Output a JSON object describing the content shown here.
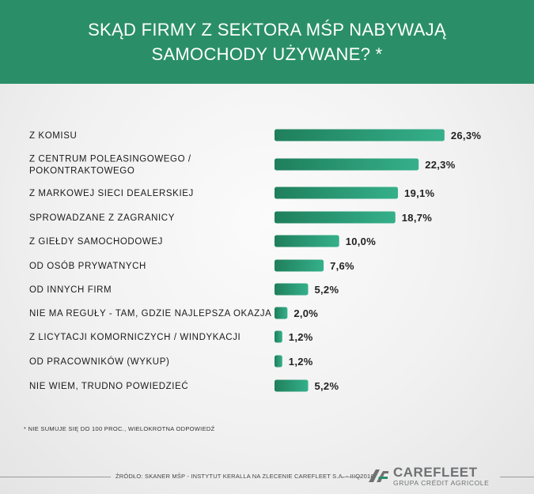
{
  "title": {
    "line1": "SKĄD FIRMY Z SEKTORA MŚP NABYWAJĄ",
    "line2": "SAMOCHODY UŻYWANE? *"
  },
  "colors": {
    "header_bg": "#2a8f68",
    "bar_dark": "#1f7f5c",
    "bar_light": "#35b08a"
  },
  "chart_data": {
    "type": "bar",
    "orientation": "horizontal",
    "categories": [
      [
        "Z KOMISU"
      ],
      [
        "Z CENTRUM POLEASINGOWEGO /",
        "POKONTRAKTOWEGO"
      ],
      [
        "Z MARKOWEJ SIECI DEALERSKIEJ"
      ],
      [
        "SPROWADZANE Z ZAGRANICY"
      ],
      [
        "Z GIEŁDY SAMOCHODOWEJ"
      ],
      [
        "OD OSÓB PRYWATNYCH"
      ],
      [
        "OD INNYCH FIRM"
      ],
      [
        "NIE MA REGUŁY - TAM, GDZIE NAJLEPSZA OKAZJA"
      ],
      [
        "Z LICYTACJI KOMORNICZYCH / WINDYKACJI"
      ],
      [
        "OD PRACOWNIKÓW (WYKUP)"
      ],
      [
        "NIE WIEM, TRUDNO POWIEDZIEĆ"
      ]
    ],
    "values": [
      26.3,
      22.3,
      19.1,
      18.7,
      10.0,
      7.6,
      5.2,
      2.0,
      1.2,
      1.2,
      5.2
    ],
    "value_labels": [
      "26,3%",
      "22,3%",
      "19,1%",
      "18,7%",
      "10,0%",
      "7,6%",
      "5,2%",
      "2,0%",
      "1,2%",
      "1,2%",
      "5,2%"
    ],
    "unit": "%"
  },
  "footnote": "* NIE SUMUJE SIĘ DO 100 PROC., WIELOKROTNA ODPOWIEDŹ",
  "source": "ŹRÓDŁO: SKANER MŚP - INSTYTUT KERALLA NA ZLECENIE CAREFLEET S.A. - IIIQ2018",
  "logo": {
    "icon": "credit-agricole-logo-icon",
    "brand": "CAREFLEET",
    "subtitle": "GRUPA CRÉDIT AGRICOLE"
  }
}
